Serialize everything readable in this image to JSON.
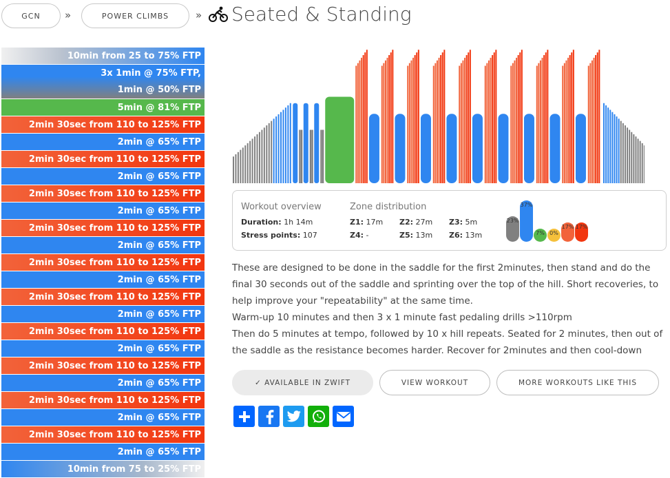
{
  "breadcrumb": {
    "items": [
      "GCN",
      "POWER CLIMBS"
    ],
    "separator": "»",
    "title": "Seated & Standing"
  },
  "intervals": [
    {
      "text": "10min from 25 to 75% FTP",
      "style": "warm"
    },
    {
      "lines": [
        "3x 1min @ 75% FTP,",
        "1min @ 50% FTP"
      ],
      "style": "drill"
    },
    {
      "text": "5min @ 81% FTP",
      "style": "green"
    },
    {
      "text": "2min 30sec from 110 to 125% FTP",
      "style": "red"
    },
    {
      "text": "2min @ 65% FTP",
      "style": "blue"
    },
    {
      "text": "2min 30sec from 110 to 125% FTP",
      "style": "red"
    },
    {
      "text": "2min @ 65% FTP",
      "style": "blue"
    },
    {
      "text": "2min 30sec from 110 to 125% FTP",
      "style": "red"
    },
    {
      "text": "2min @ 65% FTP",
      "style": "blue"
    },
    {
      "text": "2min 30sec from 110 to 125% FTP",
      "style": "red"
    },
    {
      "text": "2min @ 65% FTP",
      "style": "blue"
    },
    {
      "text": "2min 30sec from 110 to 125% FTP",
      "style": "red"
    },
    {
      "text": "2min @ 65% FTP",
      "style": "blue"
    },
    {
      "text": "2min 30sec from 110 to 125% FTP",
      "style": "red"
    },
    {
      "text": "2min @ 65% FTP",
      "style": "blue"
    },
    {
      "text": "2min 30sec from 110 to 125% FTP",
      "style": "red"
    },
    {
      "text": "2min @ 65% FTP",
      "style": "blue"
    },
    {
      "text": "2min 30sec from 110 to 125% FTP",
      "style": "red"
    },
    {
      "text": "2min @ 65% FTP",
      "style": "blue"
    },
    {
      "text": "2min 30sec from 110 to 125% FTP",
      "style": "red"
    },
    {
      "text": "2min @ 65% FTP",
      "style": "blue"
    },
    {
      "text": "2min 30sec from 110 to 125% FTP",
      "style": "red"
    },
    {
      "text": "2min @ 65% FTP",
      "style": "blue"
    },
    {
      "text": "10min from 75 to 25% FTP",
      "style": "cool"
    }
  ],
  "workout_profile": {
    "warmup": {
      "from_pct": 25,
      "to_pct": 75,
      "minutes": 10
    },
    "drills": {
      "count": 3,
      "on_pct": 75,
      "off_pct": 50
    },
    "tempo": {
      "pct": 81,
      "minutes": 5
    },
    "repeats": {
      "count": 10,
      "from_pct": 110,
      "to_pct": 125,
      "recovery_pct": 65
    },
    "cooldown": {
      "from_pct": 75,
      "to_pct": 25,
      "minutes": 10
    }
  },
  "overview": {
    "heading": "Workout overview",
    "duration_label": "Duration:",
    "duration": "1h 14m",
    "stress_label": "Stress points:",
    "stress": "107"
  },
  "zones": {
    "heading": "Zone distribution",
    "items": [
      {
        "label": "Z1:",
        "value": "17m"
      },
      {
        "label": "Z2:",
        "value": "27m"
      },
      {
        "label": "Z3:",
        "value": "5m"
      },
      {
        "label": "Z4:",
        "value": "-"
      },
      {
        "label": "Z5:",
        "value": "13m"
      },
      {
        "label": "Z6:",
        "value": "13m"
      }
    ],
    "bars": [
      {
        "pct": 23,
        "label": "23%",
        "color": "#808080"
      },
      {
        "pct": 37,
        "label": "37%",
        "color": "#2f86f0"
      },
      {
        "pct": 7,
        "label": "7%",
        "color": "#56b84c"
      },
      {
        "pct": 0,
        "label": "0%",
        "color": "#f5c03b"
      },
      {
        "pct": 17,
        "label": "17%",
        "color": "#f2633a"
      },
      {
        "pct": 17,
        "label": "17%",
        "color": "#f2360f"
      }
    ]
  },
  "description": [
    "These are designed to be done in the saddle for the first 2minutes, then stand and do the final 30 seconds out of the saddle and sprinting over the top of the hill. Short recoveries, to help improve your \"repeatability\" at the same time.",
    "Warm-up 10 minutes and then 3 x 1 minute fast pedaling drills >110rpm",
    "Then do 5 minutes at tempo, followed by 10 x hill repeats. Seated for 2 minutes, then out of the saddle as the resistance becomes harder. Recover for 2minutes and then cool-down"
  ],
  "buttons": {
    "zwift": "✓ AVAILABLE IN ZWIFT",
    "view": "VIEW WORKOUT",
    "more": "MORE WORKOUTS LIKE THIS"
  },
  "share": {
    "icons": [
      "add-share-icon",
      "facebook-icon",
      "twitter-icon",
      "whatsapp-icon",
      "email-icon"
    ],
    "colors": [
      "#0166ff",
      "#1877f2",
      "#1d9bf0",
      "#12af0a",
      "#0166ff"
    ]
  }
}
